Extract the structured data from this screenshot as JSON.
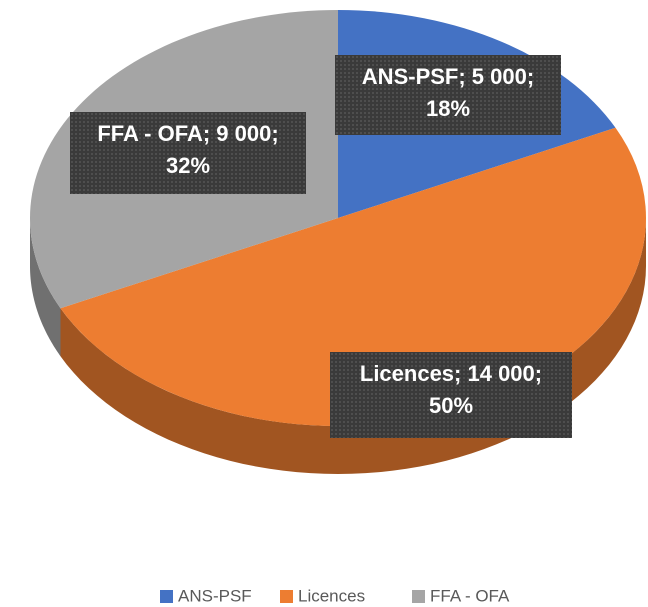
{
  "chart_data": {
    "type": "pie3d",
    "categories": [
      "ANS-PSF",
      "Licences",
      "FFA - OFA"
    ],
    "values": [
      5000,
      14000,
      9000
    ],
    "percentages": [
      18,
      50,
      32
    ],
    "data_labels": [
      "ANS-PSF; 5 000; 18%",
      "Licences; 14 000; 50%",
      "FFA - OFA; 9 000; 32%"
    ],
    "colors": [
      "#4472c4",
      "#ed7d31",
      "#a5a5a5"
    ],
    "legend": "bottom"
  }
}
